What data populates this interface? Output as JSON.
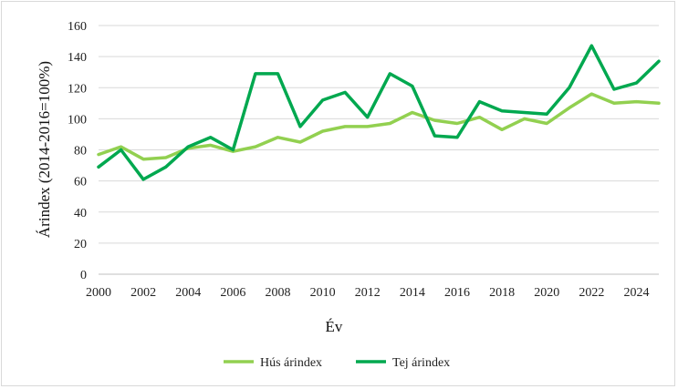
{
  "chart_data": {
    "type": "line",
    "xlabel": "Év",
    "ylabel": "Árindex (2014-2016=100%)",
    "x": [
      2000,
      2001,
      2002,
      2003,
      2004,
      2005,
      2006,
      2007,
      2008,
      2009,
      2010,
      2011,
      2012,
      2013,
      2014,
      2015,
      2016,
      2017,
      2018,
      2019,
      2020,
      2021,
      2022,
      2023,
      2024,
      2025
    ],
    "xticks": [
      "2000",
      "2002",
      "2004",
      "2006",
      "2008",
      "2010",
      "2012",
      "2014",
      "2016",
      "2018",
      "2020",
      "2022",
      "2024"
    ],
    "yticks": [
      "0",
      "20",
      "40",
      "60",
      "80",
      "100",
      "120",
      "140",
      "160"
    ],
    "xlim": [
      2000,
      2025
    ],
    "ylim": [
      0,
      160
    ],
    "grid": "horizontal",
    "legend_position": "bottom",
    "series": [
      {
        "name": "Hús árindex",
        "color": "#92d050",
        "values": [
          77,
          82,
          74,
          75,
          81,
          83,
          79,
          82,
          88,
          85,
          92,
          95,
          95,
          97,
          104,
          99,
          97,
          101,
          93,
          100,
          97,
          107,
          116,
          110,
          111,
          110
        ]
      },
      {
        "name": "Tej árindex",
        "color": "#00a84f",
        "values": [
          69,
          80,
          61,
          69,
          82,
          88,
          80,
          129,
          129,
          95,
          112,
          117,
          101,
          129,
          121,
          89,
          88,
          111,
          105,
          104,
          103,
          120,
          147,
          119,
          123,
          137
        ]
      }
    ]
  }
}
